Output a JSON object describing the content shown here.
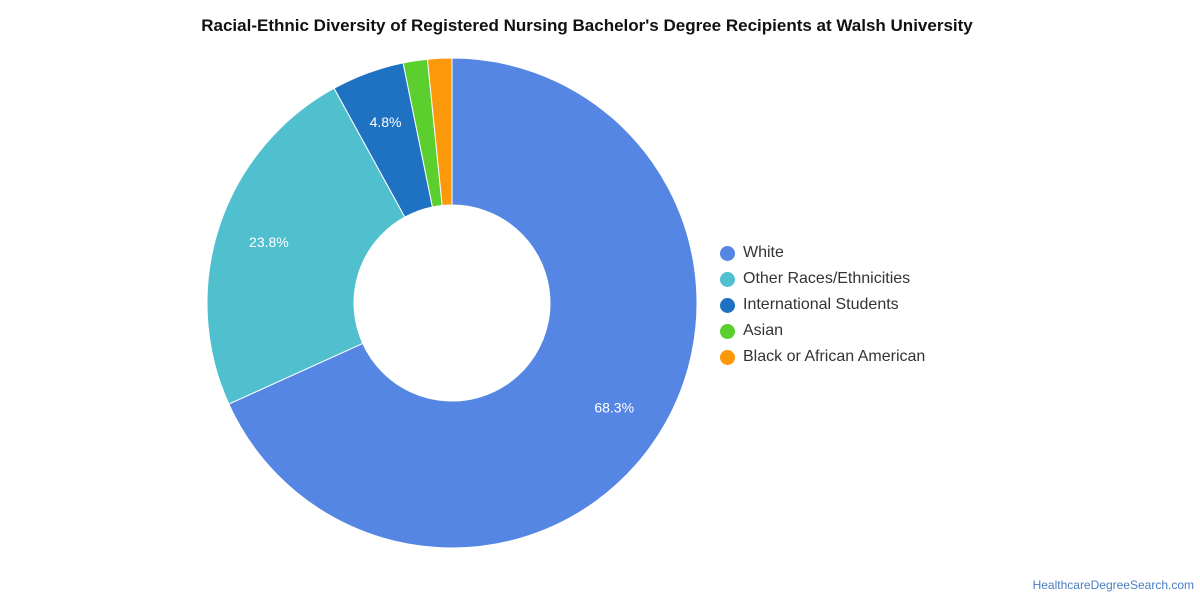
{
  "chart_data": {
    "type": "pie",
    "variant": "donut",
    "title": "Racial-Ethnic Diversity of Registered Nursing Bachelor's Degree Recipients at Walsh University",
    "categories": [
      "White",
      "Other Races/Ethnicities",
      "International Students",
      "Asian",
      "Black or African American"
    ],
    "values": [
      68.3,
      23.8,
      4.8,
      1.6,
      1.6
    ],
    "data_labels": [
      "68.3%",
      "23.8%",
      "4.8%",
      "",
      ""
    ],
    "colors": [
      "#5586e3",
      "#50c0cf",
      "#1f72c1",
      "#5acf2d",
      "#fb990b"
    ],
    "legend_position": "right"
  },
  "watermark": "HealthcareDegreeSearch.com"
}
